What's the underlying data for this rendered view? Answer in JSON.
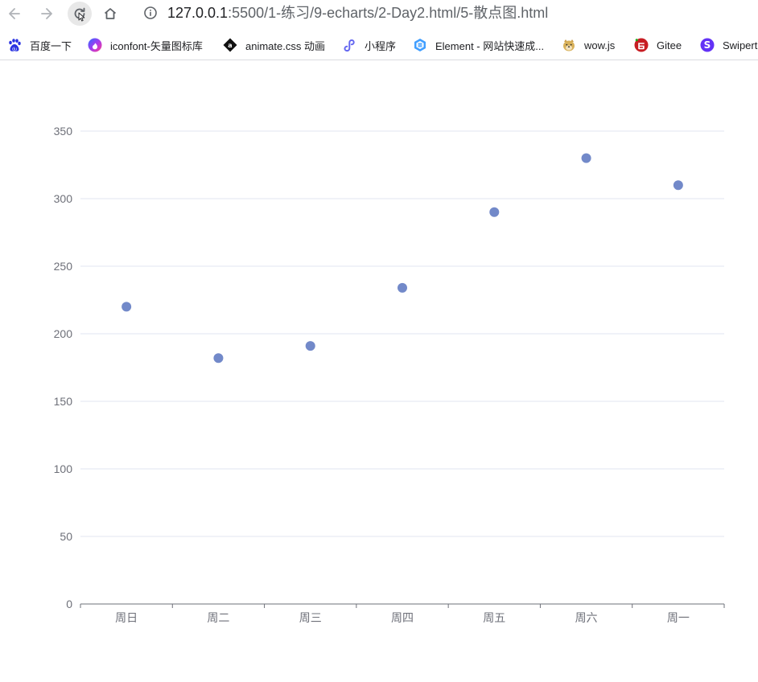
{
  "browser": {
    "url_host": "127.0.0.1",
    "url_rest": ":5500/1-练习/9-echarts/2-Day2.html/5-散点图.html",
    "back_icon": "back-arrow-icon",
    "forward_icon": "forward-arrow-icon",
    "reload_icon": "reload-icon",
    "home_icon": "home-icon",
    "info_icon": "info-icon"
  },
  "bookmarks": [
    {
      "label": "百度一下",
      "icon": "baidu-icon",
      "color": "#2932e1"
    },
    {
      "label": "iconfont-矢量图标库",
      "icon": "iconfont-icon",
      "color": "#7b3ff2"
    },
    {
      "label": "animate.css 动画",
      "icon": "animate-icon",
      "color": "#111111"
    },
    {
      "label": "小程序",
      "icon": "miniprogram-icon",
      "color": "#6467f0"
    },
    {
      "label": "Element - 网站快速成...",
      "icon": "element-icon",
      "color": "#409eff"
    },
    {
      "label": "wow.js",
      "icon": "doge-icon",
      "color": "#d8b15a"
    },
    {
      "label": "Gitee",
      "icon": "gitee-icon",
      "color": "#c71d23"
    },
    {
      "label": "Swipert",
      "icon": "swiper-icon",
      "color": "#6332f6"
    }
  ],
  "chart_data": {
    "type": "scatter",
    "categories": [
      "周日",
      "周二",
      "周三",
      "周四",
      "周五",
      "周六",
      "周一"
    ],
    "values": [
      220,
      182,
      191,
      234,
      290,
      330,
      310
    ],
    "title": "",
    "xlabel": "",
    "ylabel": "",
    "ylim": [
      0,
      350
    ],
    "yticks": [
      0,
      50,
      100,
      150,
      200,
      250,
      300,
      350
    ],
    "grid": true,
    "point_color": "#7289c9",
    "axis_color": "#6e7079",
    "grid_color": "#e0e6f1"
  }
}
